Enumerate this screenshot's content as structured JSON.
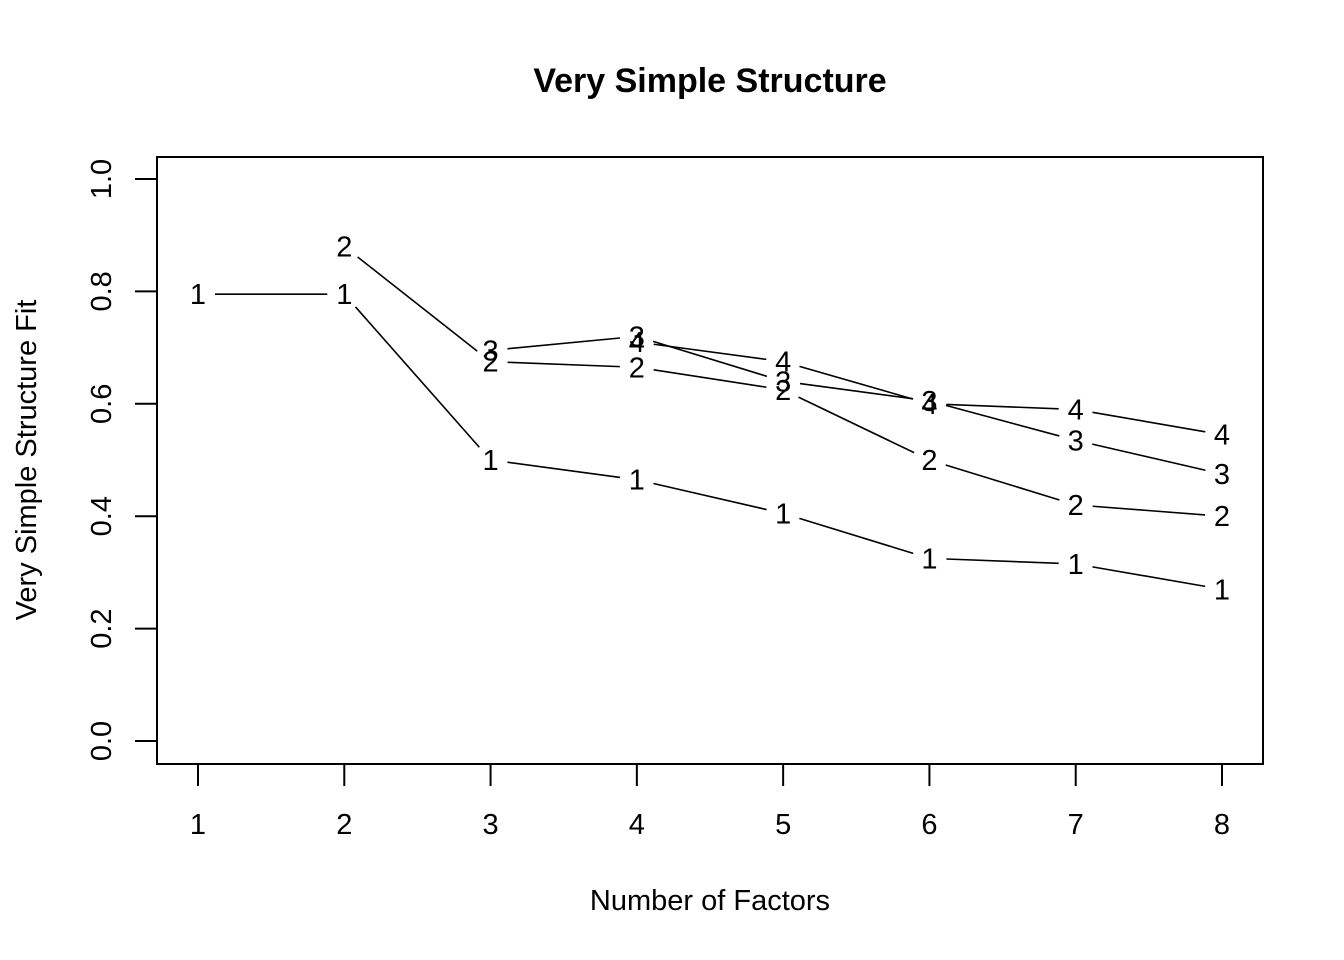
{
  "chart_data": {
    "type": "line",
    "title": "Very Simple Structure",
    "xlabel": "Number of Factors",
    "ylabel": "Very Simple Structure Fit",
    "xlim": [
      1,
      8
    ],
    "ylim": [
      0,
      1
    ],
    "x_ticks": [
      1,
      2,
      3,
      4,
      5,
      6,
      7,
      8
    ],
    "y_ticks": [
      0.0,
      0.2,
      0.4,
      0.6,
      0.8,
      1.0
    ],
    "y_tick_labels": [
      "0.0",
      "0.2",
      "0.4",
      "0.6",
      "0.8",
      "1.0"
    ],
    "grid": false,
    "legend": "none",
    "line_color": "#000000",
    "series": [
      {
        "marker": "1",
        "x": [
          1,
          2,
          3,
          4,
          5,
          6,
          7,
          8
        ],
        "values": [
          0.795,
          0.795,
          0.5,
          0.465,
          0.405,
          0.325,
          0.315,
          0.27
        ]
      },
      {
        "marker": "2",
        "x": [
          2,
          3,
          4,
          5,
          6,
          7,
          8
        ],
        "values": [
          0.88,
          0.675,
          0.665,
          0.625,
          0.5,
          0.42,
          0.4
        ]
      },
      {
        "marker": "3",
        "x": [
          3,
          4,
          5,
          6,
          7,
          8
        ],
        "values": [
          0.695,
          0.72,
          0.64,
          0.605,
          0.535,
          0.475
        ]
      },
      {
        "marker": "4",
        "x": [
          4,
          5,
          6,
          7,
          8
        ],
        "values": [
          0.71,
          0.675,
          0.6,
          0.59,
          0.545
        ]
      }
    ]
  }
}
